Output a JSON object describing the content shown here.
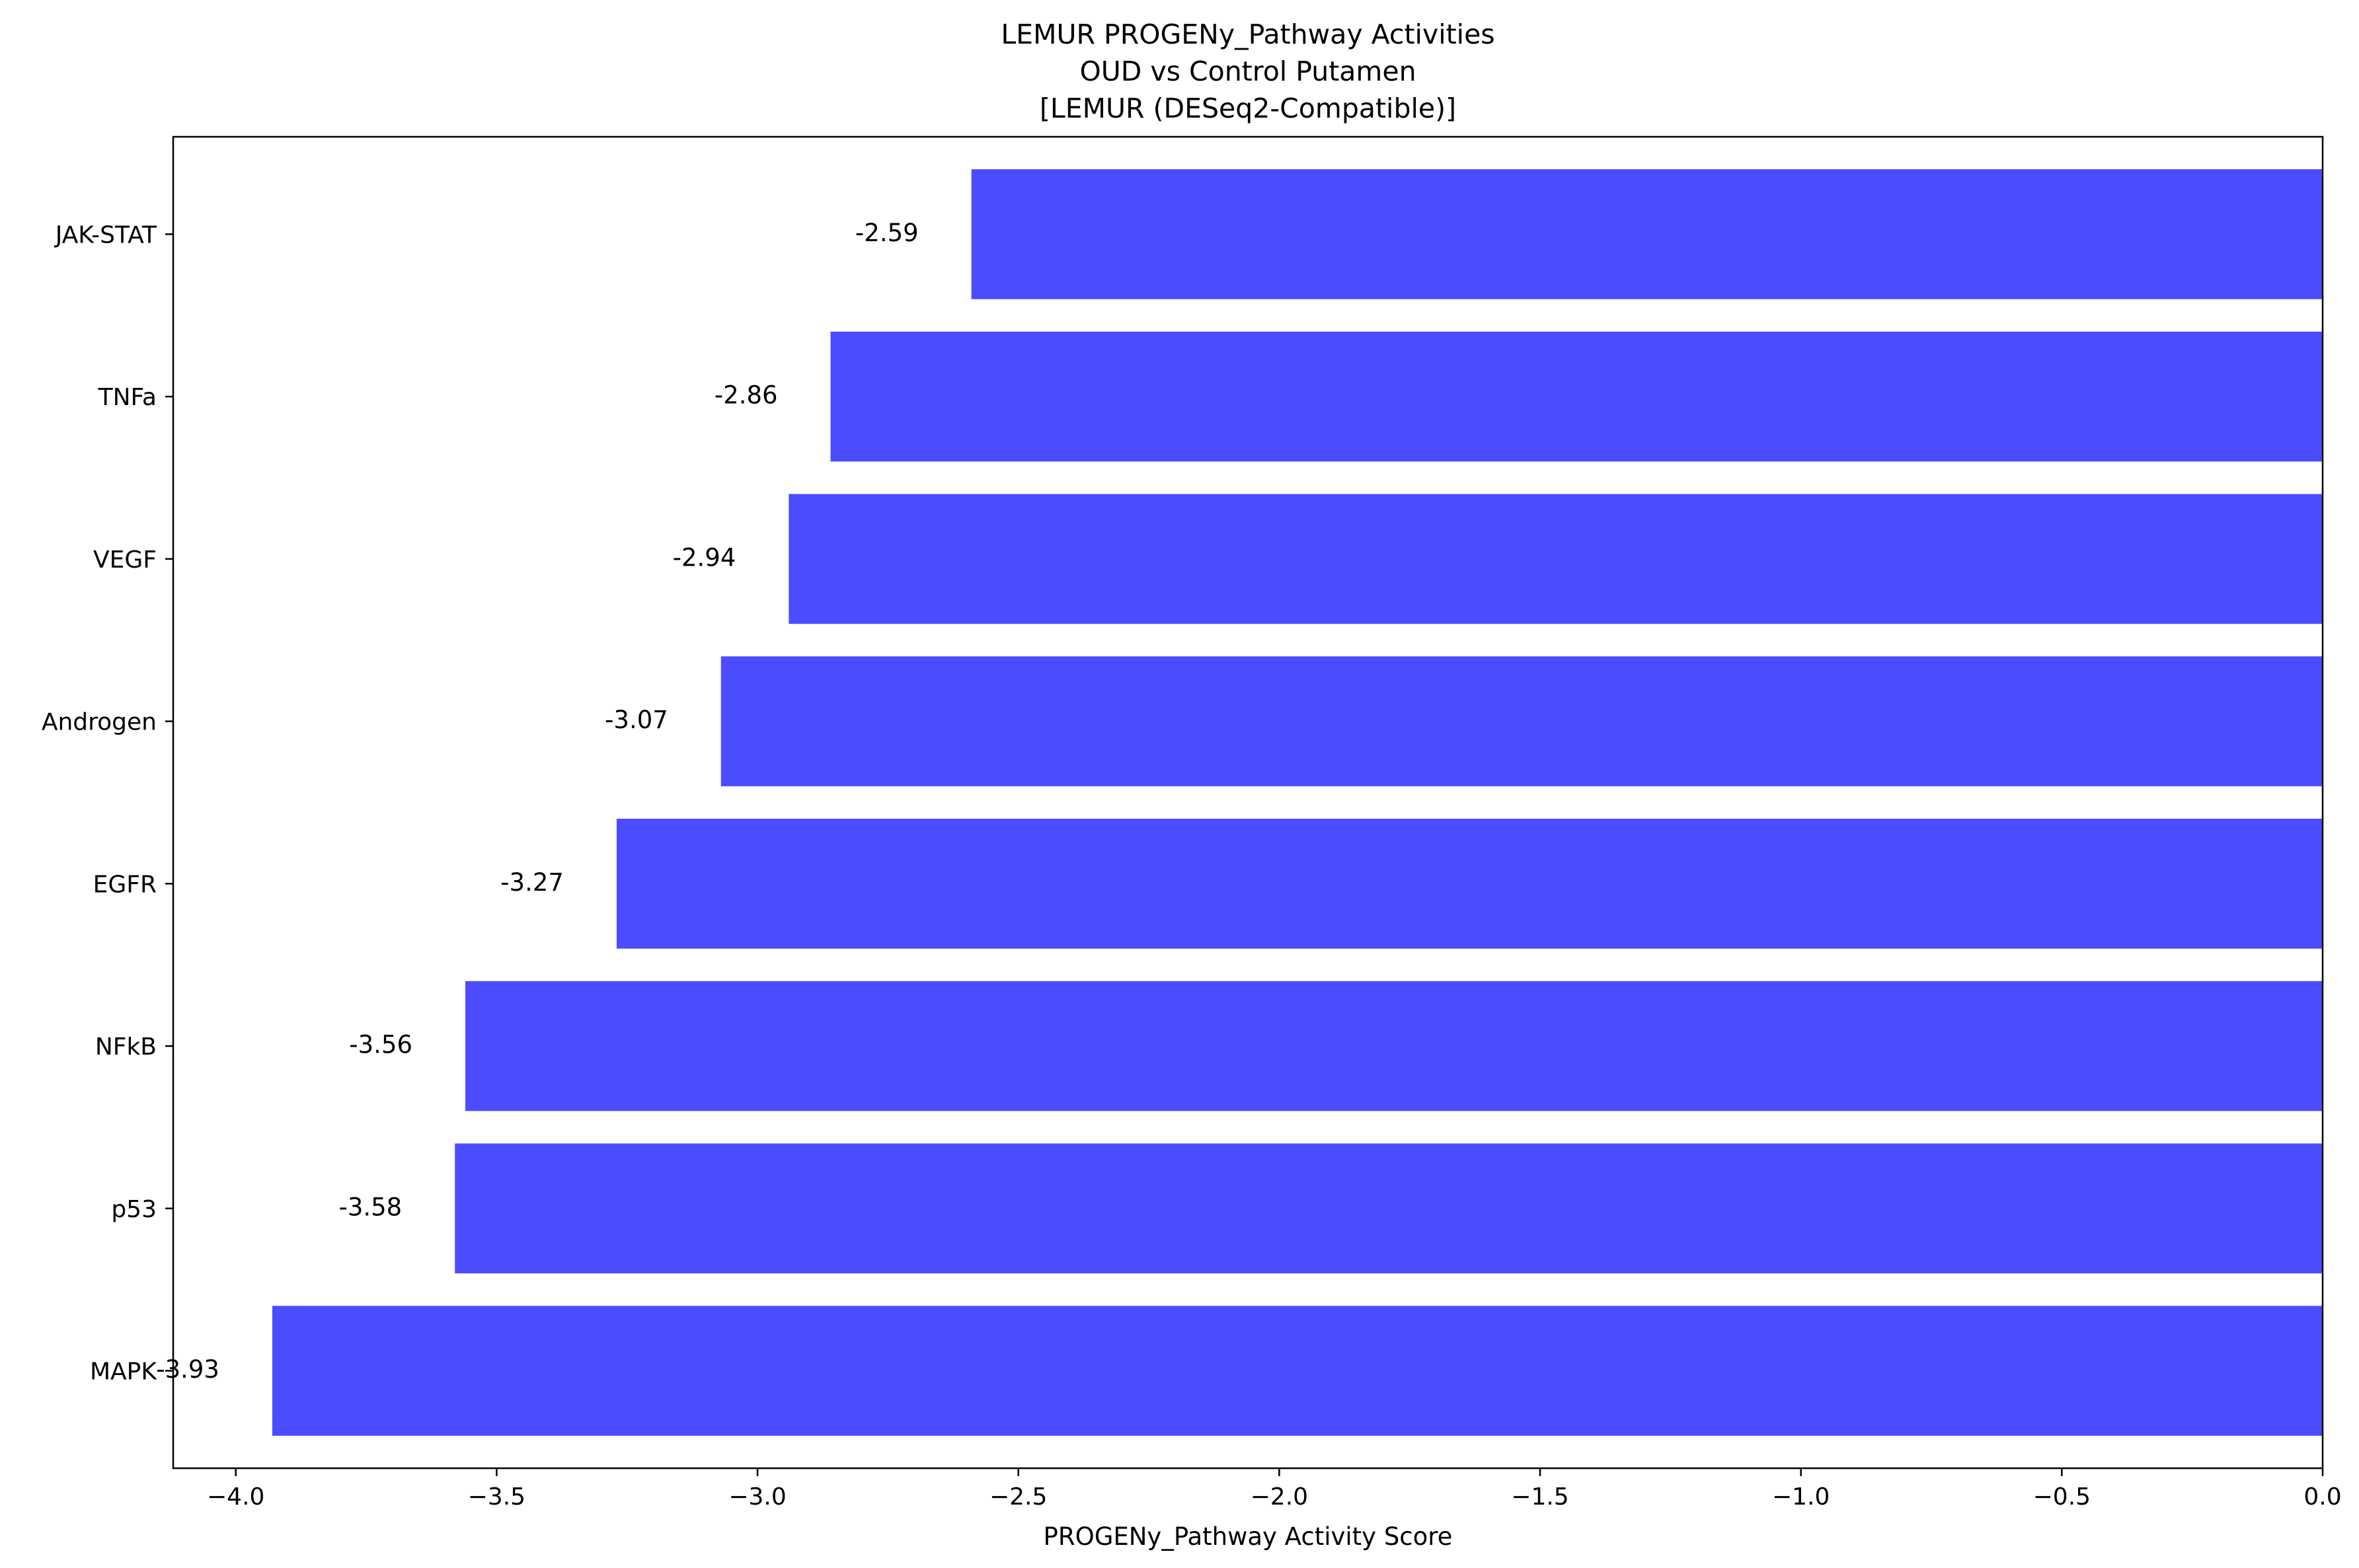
{
  "chart_data": {
    "type": "bar",
    "orientation": "horizontal",
    "title_lines": [
      "LEMUR PROGENy_Pathway Activities",
      "OUD vs Control Putamen",
      "[LEMUR (DESeq2-Compatible)]"
    ],
    "xlabel": "PROGENy_Pathway Activity Score",
    "ylabel": "",
    "categories": [
      "JAK-STAT",
      "TNFa",
      "VEGF",
      "Androgen",
      "EGFR",
      "NFkB",
      "p53",
      "MAPK"
    ],
    "values": [
      -2.59,
      -2.86,
      -2.94,
      -3.07,
      -3.27,
      -3.56,
      -3.58,
      -3.93
    ],
    "value_labels": [
      "-2.59",
      "-2.86",
      "-2.94",
      "-3.07",
      "-3.27",
      "-3.56",
      "-3.58",
      "-3.93"
    ],
    "xlim": [
      -4.12,
      0.0
    ],
    "xticks": [
      -4.0,
      -3.5,
      -3.0,
      -2.5,
      -2.0,
      -1.5,
      -1.0,
      -0.5,
      0.0
    ],
    "xtick_labels": [
      "−4.0",
      "−3.5",
      "−3.0",
      "−2.5",
      "−2.0",
      "−1.5",
      "−1.0",
      "−0.5",
      "0.0"
    ],
    "bar_color": "#4c4cff",
    "grid": false,
    "legend": "none"
  }
}
